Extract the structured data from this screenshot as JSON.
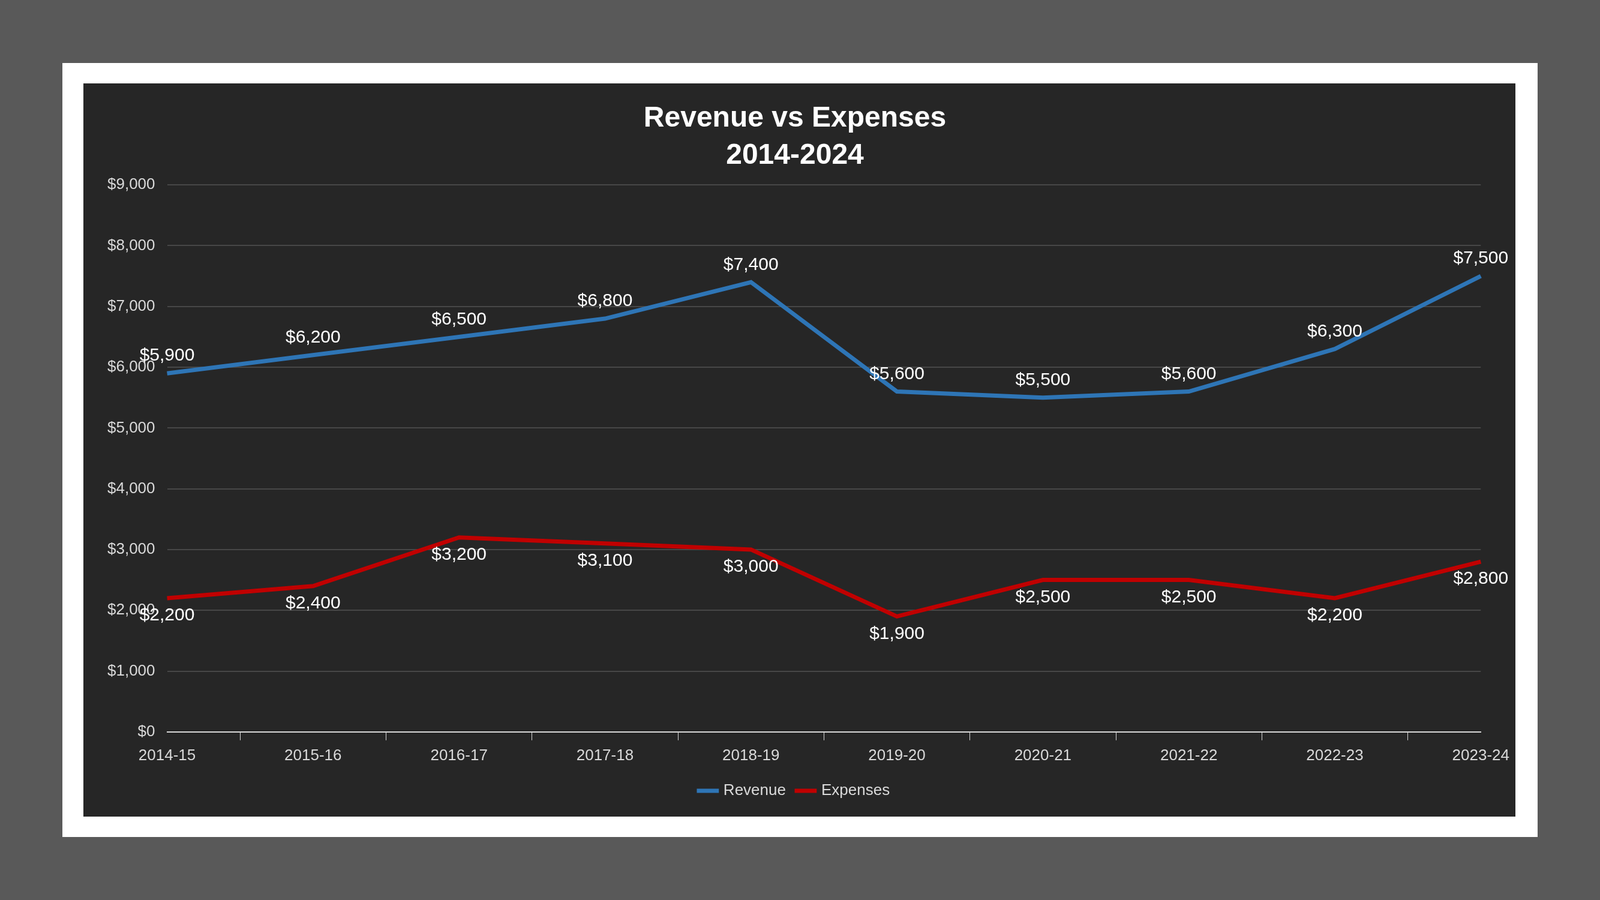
{
  "chart_data": {
    "type": "line",
    "title": "Revenue vs Expenses",
    "subtitle": "2014-2024",
    "categories": [
      "2014-15",
      "2015-16",
      "2016-17",
      "2017-18",
      "2018-19",
      "2019-20",
      "2020-21",
      "2021-22",
      "2022-23",
      "2023-24"
    ],
    "series": [
      {
        "name": "Revenue",
        "color": "#2e75b6",
        "values": [
          5900,
          6200,
          6500,
          6800,
          7400,
          5600,
          5500,
          5600,
          6300,
          7500
        ],
        "value_labels": [
          "$5,900",
          "$6,200",
          "$6,500",
          "$6,800",
          "$7,400",
          "$5,600",
          "$5,500",
          "$5,600",
          "$6,300",
          "$7,500"
        ]
      },
      {
        "name": "Expenses",
        "color": "#c00000",
        "values": [
          2200,
          2400,
          3200,
          3100,
          3000,
          1900,
          2500,
          2500,
          2200,
          2800
        ],
        "value_labels": [
          "$2,200",
          "$2,400",
          "$3,200",
          "$3,100",
          "$3,000",
          "$1,900",
          "$2,500",
          "$2,500",
          "$2,200",
          "$2,800"
        ]
      }
    ],
    "ylim": [
      0,
      9000
    ],
    "yticks": [
      {
        "value": 0,
        "label": "$0"
      },
      {
        "value": 1000,
        "label": "$1,000"
      },
      {
        "value": 2000,
        "label": "$2,000"
      },
      {
        "value": 3000,
        "label": "$3,000"
      },
      {
        "value": 4000,
        "label": "$4,000"
      },
      {
        "value": 5000,
        "label": "$5,000"
      },
      {
        "value": 6000,
        "label": "$6,000"
      },
      {
        "value": 7000,
        "label": "$7,000"
      },
      {
        "value": 8000,
        "label": "$8,000"
      },
      {
        "value": 9000,
        "label": "$9,000"
      }
    ],
    "grid": true,
    "legend": "bottom",
    "data_labels": true
  }
}
